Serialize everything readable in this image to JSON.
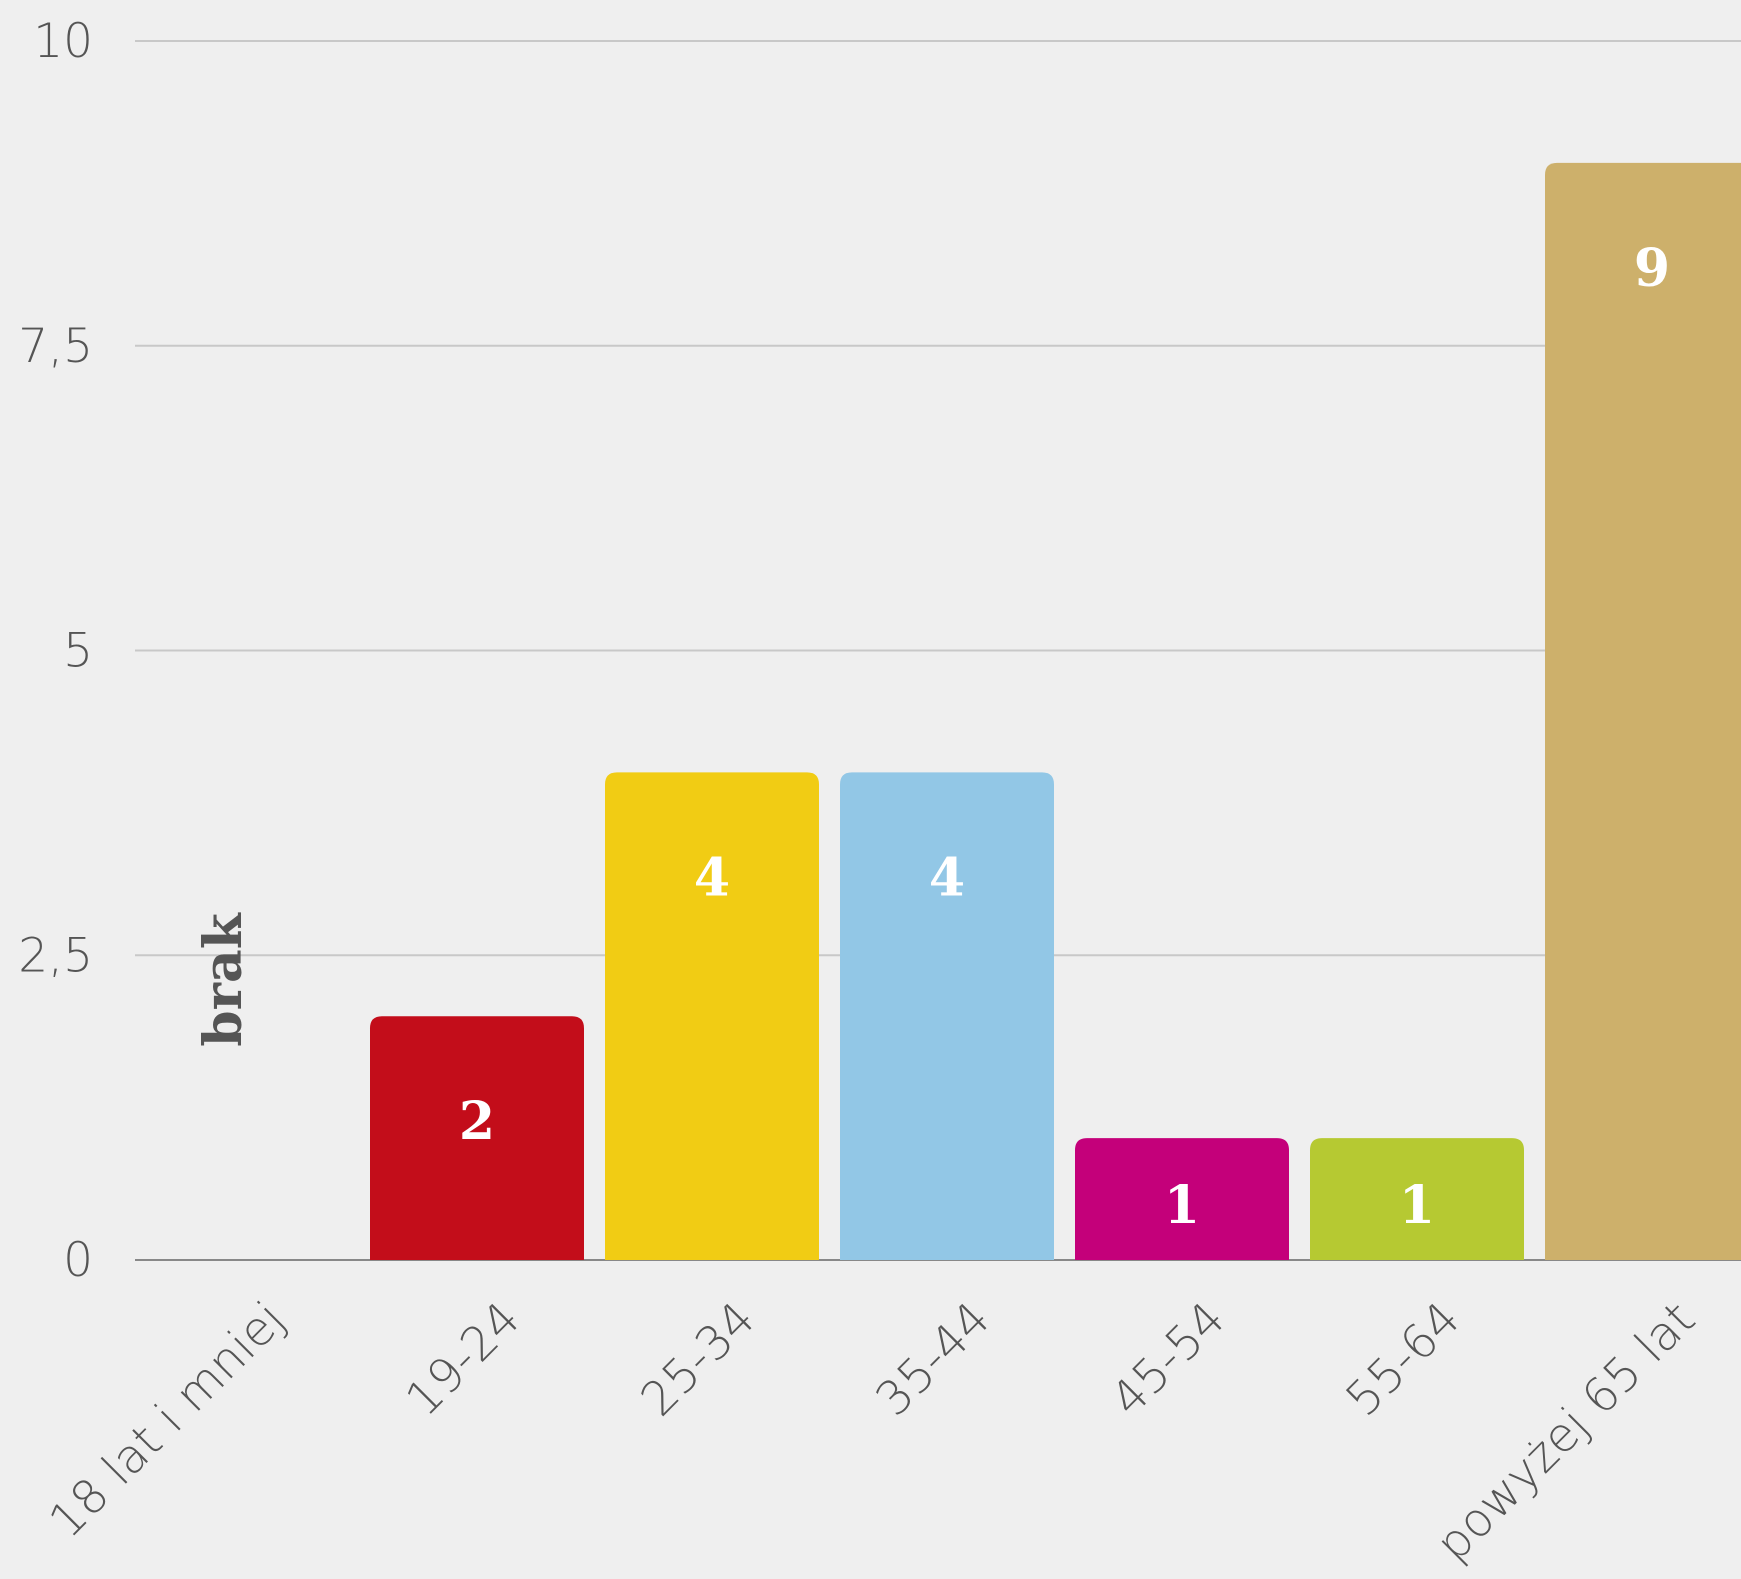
{
  "chart_data": {
    "type": "bar",
    "categories": [
      "18 lat i mniej",
      "19-24",
      "25-34",
      "35-44",
      "45-54",
      "55-64",
      "powyżej 65 lat"
    ],
    "values": [
      null,
      2,
      4,
      4,
      1,
      1,
      9
    ],
    "value_labels": [
      "brak",
      "2",
      "4",
      "4",
      "1",
      "1",
      "9"
    ],
    "colors": [
      null,
      "#c30d1a",
      "#f1cc14",
      "#92c7e6",
      "#c4007a",
      "#b6c932",
      "#cdb06b"
    ],
    "ylim": [
      0,
      10
    ],
    "yticks": [
      0,
      {
        "value": 2.5,
        "label": "2,5"
      },
      5,
      {
        "value": 7.5,
        "label": "7,5"
      },
      10
    ],
    "grid": true
  }
}
